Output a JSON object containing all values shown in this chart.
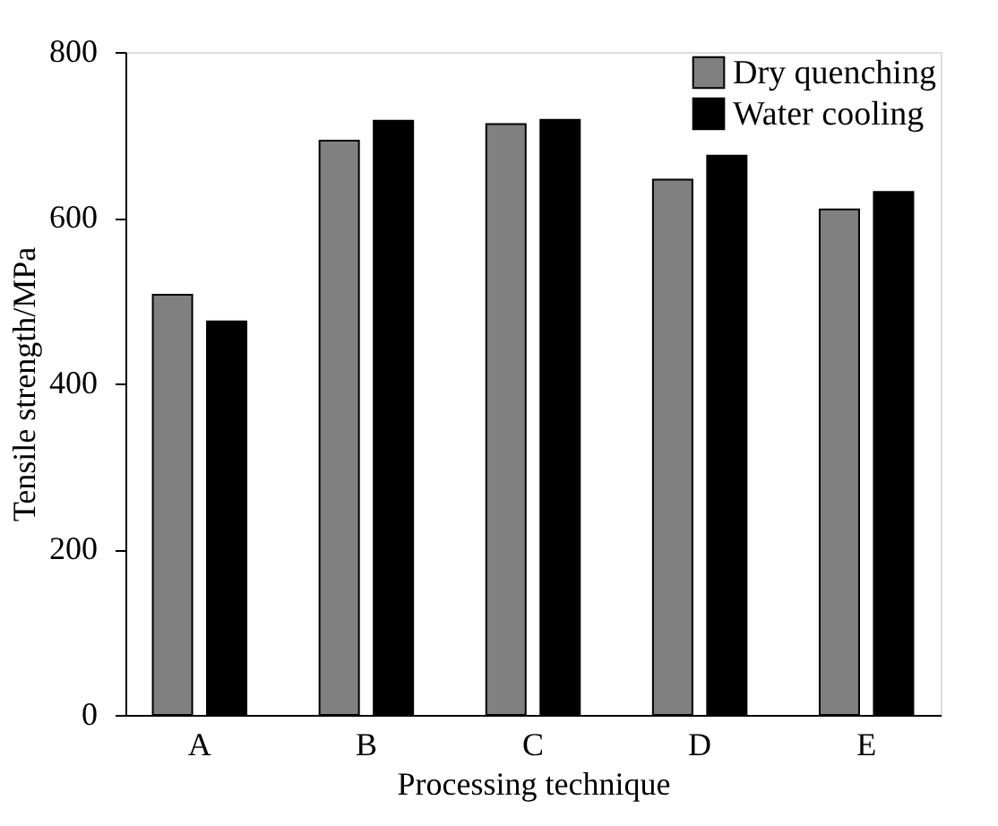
{
  "chart_data": {
    "type": "bar",
    "xlabel": "Processing technique",
    "ylabel": "Tensile strength/MPa",
    "categories": [
      "A",
      "B",
      "C",
      "D",
      "E"
    ],
    "series": [
      {
        "name": "Dry quenching",
        "color": "#808080",
        "values": [
          507,
          693,
          713,
          646,
          610
        ]
      },
      {
        "name": "Water cooling",
        "color": "#000000",
        "values": [
          475,
          717,
          718,
          675,
          631
        ]
      }
    ],
    "ylim": [
      0,
      800
    ],
    "yticks": [
      0,
      200,
      400,
      600,
      800
    ],
    "grid": false,
    "legend": "top right"
  }
}
